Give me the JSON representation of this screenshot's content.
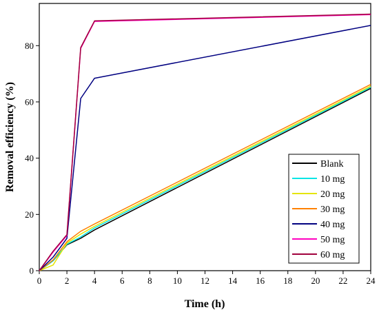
{
  "chart_data": {
    "type": "line",
    "xlabel": "Time (h)",
    "ylabel": "Removal efficiency (%)",
    "xlim": [
      0,
      24
    ],
    "ylim": [
      0,
      95
    ],
    "xticks": [
      0,
      2,
      4,
      6,
      8,
      10,
      12,
      14,
      16,
      18,
      20,
      22,
      24
    ],
    "yticks": [
      0,
      20,
      40,
      60,
      80
    ],
    "grid": false,
    "legend_position": "bottom-right",
    "x": [
      0,
      1,
      2,
      3,
      4,
      24
    ],
    "series": [
      {
        "name": "Blank",
        "color": "#000000",
        "values": [
          0,
          3.5,
          9.2,
          11.5,
          14.5,
          64.8
        ]
      },
      {
        "name": "10 mg",
        "color": "#00e5e5",
        "values": [
          0,
          3.5,
          9.4,
          12.0,
          15.2,
          65.2
        ]
      },
      {
        "name": "20 mg",
        "color": "#e5e500",
        "values": [
          0,
          2.0,
          9.8,
          13.0,
          15.8,
          65.6
        ]
      },
      {
        "name": "30 mg",
        "color": "#ff8000",
        "values": [
          0,
          3.8,
          10.3,
          14.0,
          16.6,
          66.2
        ]
      },
      {
        "name": "40 mg",
        "color": "#000080",
        "values": [
          0,
          4.8,
          11.5,
          61.2,
          68.4,
          87.2
        ]
      },
      {
        "name": "50 mg",
        "color": "#ff00c0",
        "values": [
          0,
          6.6,
          12.5,
          79.0,
          88.6,
          91.0
        ]
      },
      {
        "name": "60 mg",
        "color": "#a0003c",
        "values": [
          0,
          6.9,
          12.8,
          79.3,
          88.8,
          91.2
        ]
      }
    ]
  }
}
